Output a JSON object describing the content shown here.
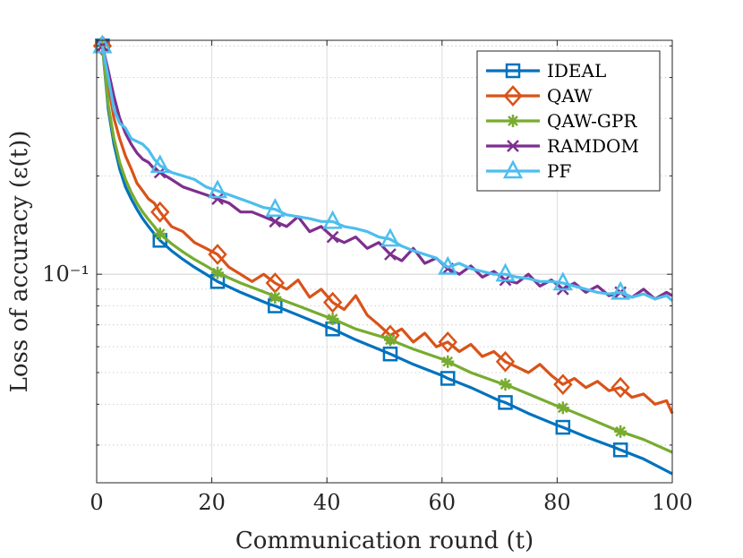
{
  "chart_data": {
    "type": "line",
    "xlabel": "Communication round (t)",
    "ylabel": "Loss of accuracy (ε(t))",
    "yscale": "log",
    "xlim": [
      0,
      100
    ],
    "ylim": [
      0.023,
      0.52
    ],
    "xticks": [
      0,
      20,
      40,
      60,
      80,
      100
    ],
    "xtick_labels": [
      "0",
      "20",
      "40",
      "60",
      "80",
      "100"
    ],
    "ytick_label": "10⁻¹",
    "ytick_value": 0.1,
    "grid": true,
    "legend_position": "top-right",
    "series": [
      {
        "name": "IDEAL",
        "color": "#0072BD",
        "marker": "square",
        "x": [
          1,
          2,
          3,
          4,
          5,
          6,
          7,
          8,
          9,
          10,
          11,
          13,
          15,
          17,
          19,
          21,
          25,
          30,
          31,
          35,
          40,
          41,
          45,
          50,
          51,
          55,
          60,
          61,
          65,
          70,
          71,
          75,
          80,
          81,
          85,
          90,
          91,
          95,
          100
        ],
        "y": [
          0.5,
          0.32,
          0.25,
          0.21,
          0.185,
          0.17,
          0.158,
          0.148,
          0.14,
          0.133,
          0.127,
          0.118,
          0.111,
          0.105,
          0.1,
          0.095,
          0.088,
          0.081,
          0.08,
          0.075,
          0.069,
          0.068,
          0.063,
          0.058,
          0.057,
          0.053,
          0.049,
          0.048,
          0.045,
          0.041,
          0.0405,
          0.0375,
          0.0345,
          0.034,
          0.0318,
          0.0295,
          0.029,
          0.0272,
          0.0245
        ]
      },
      {
        "name": "QAW",
        "color": "#D95319",
        "marker": "diamond",
        "x": [
          1,
          2,
          3,
          4,
          5,
          6,
          7,
          8,
          9,
          10,
          11,
          13,
          15,
          17,
          19,
          21,
          23,
          25,
          27,
          29,
          31,
          33,
          35,
          37,
          39,
          41,
          43,
          45,
          47,
          49,
          51,
          53,
          55,
          57,
          59,
          61,
          63,
          65,
          67,
          69,
          71,
          73,
          75,
          77,
          79,
          81,
          83,
          85,
          87,
          89,
          91,
          93,
          95,
          97,
          99,
          100
        ],
        "y": [
          0.5,
          0.38,
          0.3,
          0.26,
          0.23,
          0.21,
          0.19,
          0.18,
          0.17,
          0.165,
          0.155,
          0.14,
          0.135,
          0.125,
          0.12,
          0.115,
          0.105,
          0.1,
          0.095,
          0.1,
          0.094,
          0.09,
          0.096,
          0.085,
          0.09,
          0.082,
          0.078,
          0.086,
          0.075,
          0.07,
          0.065,
          0.068,
          0.062,
          0.066,
          0.06,
          0.062,
          0.058,
          0.061,
          0.056,
          0.058,
          0.054,
          0.052,
          0.05,
          0.053,
          0.049,
          0.046,
          0.048,
          0.045,
          0.047,
          0.044,
          0.045,
          0.042,
          0.043,
          0.04,
          0.041,
          0.0375
        ]
      },
      {
        "name": "QAW-GPR",
        "color": "#77AC30",
        "marker": "asterisk",
        "x": [
          1,
          2,
          3,
          4,
          5,
          6,
          7,
          8,
          9,
          10,
          11,
          13,
          15,
          17,
          19,
          21,
          25,
          30,
          31,
          35,
          40,
          41,
          45,
          50,
          51,
          55,
          60,
          61,
          65,
          70,
          71,
          75,
          80,
          81,
          85,
          90,
          91,
          95,
          100
        ],
        "y": [
          0.5,
          0.33,
          0.26,
          0.22,
          0.195,
          0.178,
          0.165,
          0.155,
          0.147,
          0.14,
          0.133,
          0.124,
          0.117,
          0.111,
          0.106,
          0.101,
          0.094,
          0.087,
          0.085,
          0.08,
          0.074,
          0.073,
          0.068,
          0.064,
          0.063,
          0.059,
          0.055,
          0.054,
          0.05,
          0.0465,
          0.046,
          0.043,
          0.0395,
          0.039,
          0.0365,
          0.0335,
          0.033,
          0.0312,
          0.0285
        ]
      },
      {
        "name": "RAMDOM",
        "color": "#7E2F8E",
        "marker": "x",
        "x": [
          1,
          2,
          3,
          4,
          5,
          6,
          7,
          8,
          9,
          10,
          11,
          13,
          15,
          17,
          19,
          21,
          23,
          25,
          27,
          29,
          31,
          33,
          35,
          37,
          39,
          41,
          43,
          45,
          47,
          49,
          51,
          53,
          55,
          57,
          59,
          61,
          63,
          65,
          67,
          69,
          71,
          73,
          75,
          77,
          79,
          81,
          83,
          85,
          87,
          89,
          91,
          93,
          95,
          97,
          99,
          100
        ],
        "y": [
          0.5,
          0.42,
          0.35,
          0.3,
          0.27,
          0.25,
          0.235,
          0.225,
          0.22,
          0.21,
          0.205,
          0.195,
          0.185,
          0.18,
          0.175,
          0.17,
          0.165,
          0.155,
          0.155,
          0.15,
          0.145,
          0.14,
          0.15,
          0.135,
          0.14,
          0.13,
          0.125,
          0.13,
          0.12,
          0.125,
          0.115,
          0.11,
          0.12,
          0.108,
          0.112,
          0.104,
          0.1,
          0.106,
          0.098,
          0.102,
          0.096,
          0.094,
          0.1,
          0.092,
          0.096,
          0.09,
          0.094,
          0.088,
          0.092,
          0.086,
          0.088,
          0.085,
          0.09,
          0.084,
          0.088,
          0.086
        ]
      },
      {
        "name": "PF",
        "color": "#4DBEEE",
        "marker": "triangle",
        "x": [
          1,
          2,
          3,
          4,
          5,
          6,
          7,
          8,
          9,
          10,
          11,
          13,
          15,
          17,
          19,
          21,
          23,
          25,
          27,
          29,
          31,
          33,
          35,
          37,
          39,
          41,
          43,
          45,
          47,
          49,
          51,
          53,
          55,
          57,
          59,
          61,
          63,
          65,
          67,
          69,
          71,
          73,
          75,
          77,
          79,
          81,
          83,
          85,
          87,
          89,
          91,
          93,
          95,
          97,
          99,
          100
        ],
        "y": [
          0.5,
          0.4,
          0.32,
          0.29,
          0.28,
          0.26,
          0.255,
          0.25,
          0.24,
          0.225,
          0.215,
          0.205,
          0.2,
          0.195,
          0.185,
          0.18,
          0.175,
          0.17,
          0.165,
          0.16,
          0.158,
          0.152,
          0.15,
          0.148,
          0.145,
          0.145,
          0.14,
          0.138,
          0.135,
          0.13,
          0.128,
          0.122,
          0.118,
          0.115,
          0.112,
          0.105,
          0.108,
          0.104,
          0.102,
          0.1,
          0.1,
          0.098,
          0.097,
          0.095,
          0.095,
          0.094,
          0.092,
          0.09,
          0.088,
          0.087,
          0.088,
          0.085,
          0.087,
          0.084,
          0.086,
          0.083
        ]
      }
    ]
  }
}
